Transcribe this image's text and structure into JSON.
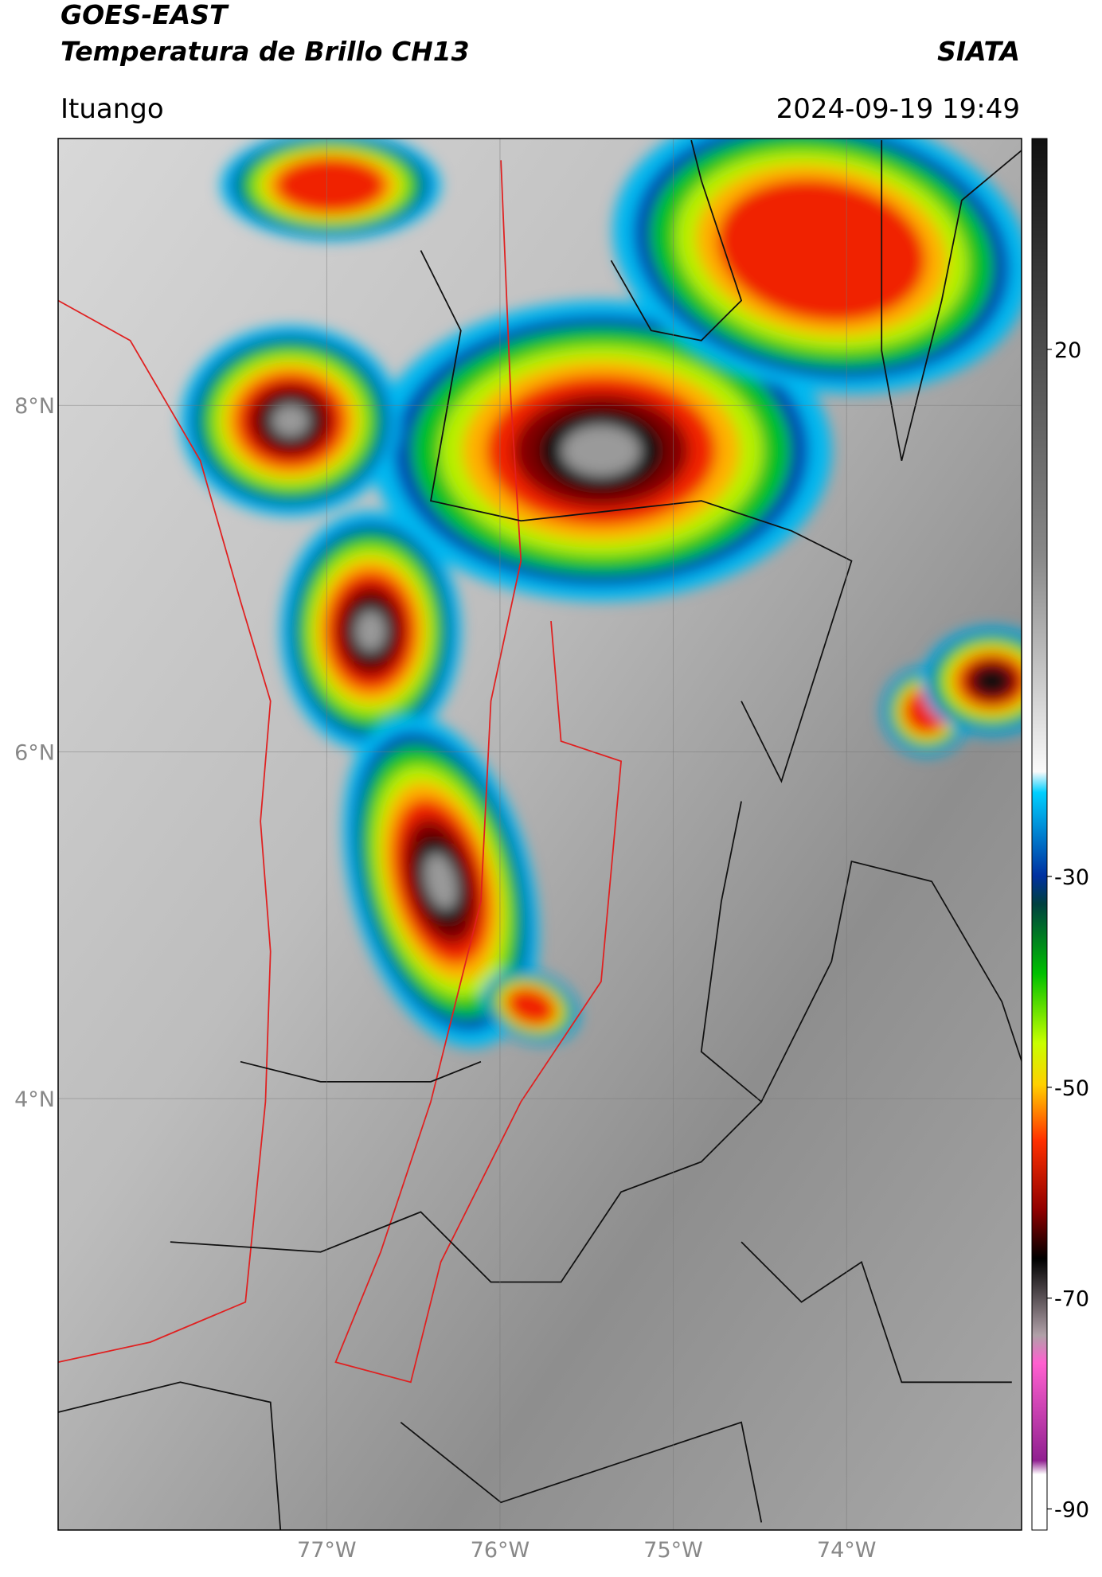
{
  "header": {
    "satellite": "GOES-EAST",
    "product": "Temperatura de Brillo CH13",
    "source": "SIATA",
    "location": "Ituango",
    "datetime": "2024-09-19 19:49"
  },
  "map": {
    "lat_range": [
      1.51,
      9.54
    ],
    "lon_range": [
      -78.55,
      -72.99
    ],
    "lat_ticks": [
      {
        "value": 8,
        "label": "8°N"
      },
      {
        "value": 6,
        "label": "6°N"
      },
      {
        "value": 4,
        "label": "4°N"
      }
    ],
    "lon_ticks": [
      {
        "value": -77,
        "label": "77°W"
      },
      {
        "value": -76,
        "label": "76°W"
      },
      {
        "value": -75,
        "label": "75°W"
      },
      {
        "value": -74,
        "label": "74°W"
      }
    ]
  },
  "colorbar": {
    "range": [
      -92,
      40
    ],
    "ticks": [
      20,
      -30,
      -50,
      -70,
      -90
    ]
  }
}
